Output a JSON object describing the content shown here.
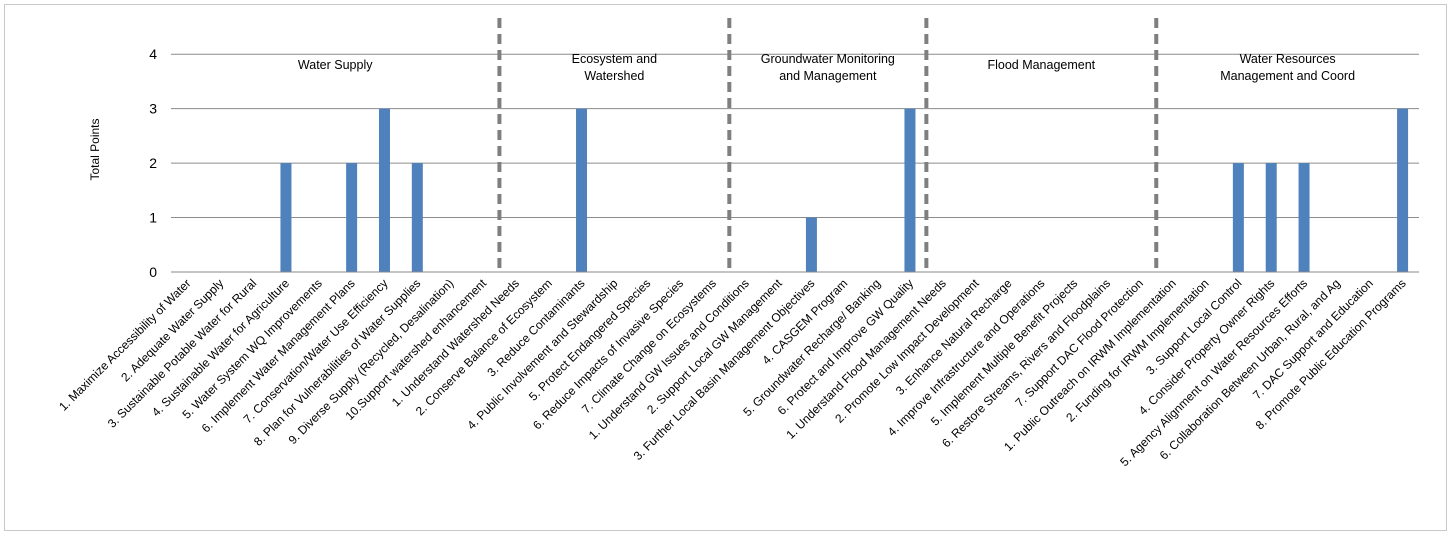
{
  "chart_data": {
    "type": "bar",
    "ylabel": "Total Points",
    "ylim": [
      0,
      4.5
    ],
    "yticks": [
      "0",
      "1",
      "2",
      "3",
      "4"
    ],
    "grid": true,
    "bar_color": "#4f81bd",
    "categories": [
      "1.  Maximize Accessibility of Water",
      "2.  Adequate Water Supply",
      "3.  Sustainable Potable Water for Rural",
      "4.  Sustainable Water for Agriculture",
      "5.  Water System WQ Improvements",
      "6.  Implement Water Management Plans",
      "7.  Conservation/Water Use Efficiency",
      "8.  Plan for Vulnerabilities of Water Supplies",
      "9.  Diverse Supply (Recycled, Desalination)",
      "10.Support watershed enhancement",
      "1.  Understand Watershed Needs",
      "2.  Conserve Balance of Ecosystem",
      "3.  Reduce Contaminants",
      "4.  Public Involvement and Stewardship",
      "5.  Protect Endangered Species",
      "6.  Reduce Impacts of Invasive Species",
      "7.  Climate Change on Ecosystems",
      "1.  Understand GW Issues and Conditions",
      "2.  Support Local GW Management",
      "3.  Further Local Basin Management Objectives",
      "4.  CASGEM Program",
      "5.  Groundwater Recharge/ Banking",
      "6.  Protect and Improve GW Quality",
      "1.  Understand Flood Management Needs",
      "2.  Promote Low Impact Development",
      "3.  Enhance Natural Recharge",
      "4.  Improve Infrastructure and Operations",
      "5.  Implement Multiple Benefit Projects",
      "6.  Restore Streams, Rivers and Floodplains",
      "7. Support DAC Flood Protection",
      "1.  Public Outreach on IRWM Implementation",
      "2.  Funding for IRWM Implementation",
      "3.  Support Local Control",
      "4.  Consider Property Owner Rights",
      "5.  Agency Alignment on Water Resources Efforts",
      "6.  Collaboration Between Urban, Rural, and Ag",
      "7.  DAC Support and Education",
      "8. Promote Public Education Programs"
    ],
    "values": [
      0,
      0,
      0,
      2,
      0,
      2,
      3,
      2,
      0,
      0,
      0,
      0,
      3,
      0,
      0,
      0,
      0,
      0,
      0,
      1,
      0,
      0,
      3,
      0,
      0,
      0,
      0,
      0,
      0,
      0,
      0,
      0,
      2,
      2,
      2,
      0,
      0,
      3
    ],
    "groups": [
      {
        "lines": [
          "Water Supply"
        ],
        "start": 0,
        "count": 10
      },
      {
        "lines": [
          "Ecosystem and",
          "Watershed"
        ],
        "start": 10,
        "count": 7
      },
      {
        "lines": [
          "Groundwater Monitoring",
          "and Management"
        ],
        "start": 17,
        "count": 6
      },
      {
        "lines": [
          "Flood Management"
        ],
        "start": 23,
        "count": 7
      },
      {
        "lines": [
          "Water Resources",
          "Management and Coord"
        ],
        "start": 30,
        "count": 8
      }
    ]
  }
}
